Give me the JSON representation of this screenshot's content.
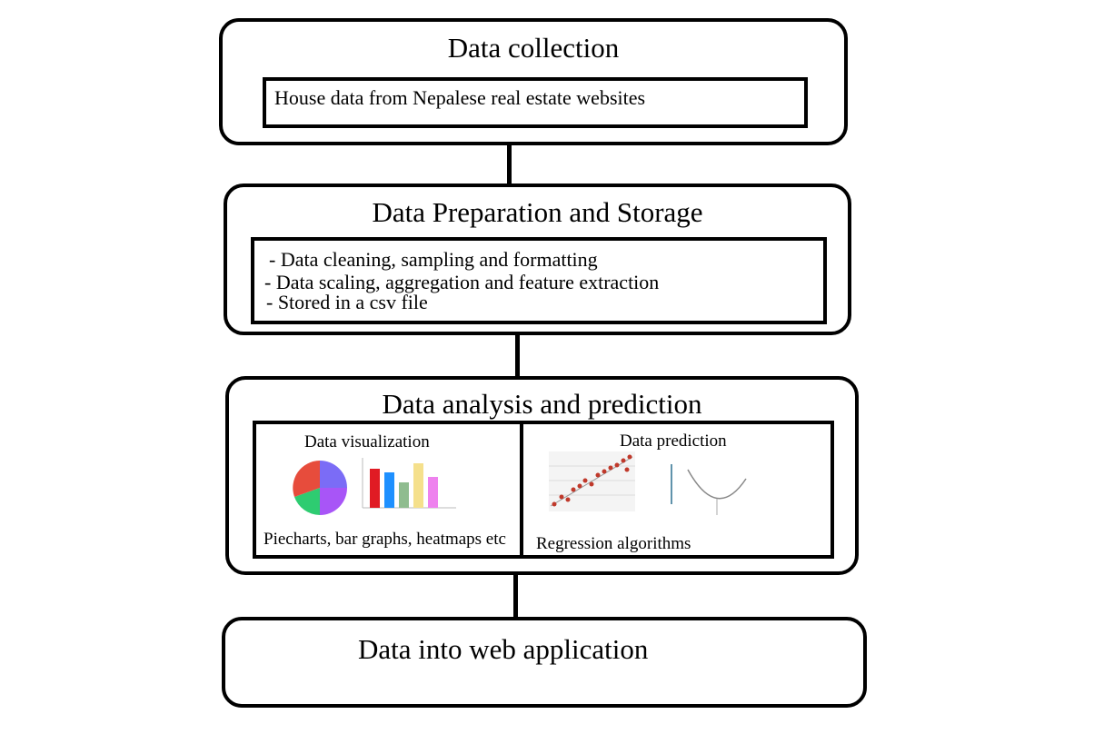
{
  "stages": [
    {
      "title": "Data collection",
      "lines": [
        "House data from Nepalese real estate websites"
      ]
    },
    {
      "title": "Data Preparation and Storage",
      "lines": [
        "- Data cleaning, sampling and formatting",
        "- Data scaling, aggregation and feature extraction",
        "- Stored in a csv file"
      ]
    },
    {
      "title": "Data analysis and prediction",
      "panels": [
        {
          "title": "Data visualization",
          "caption": "Piecharts, bar graphs, heatmaps etc"
        },
        {
          "title": "Data prediction",
          "caption": "Regression algorithms"
        }
      ]
    },
    {
      "title": "Data into web application"
    }
  ],
  "colors": {
    "pie": [
      "#e74c3c",
      "#7b6cf6",
      "#a855f7",
      "#2ecc71"
    ],
    "bars": [
      "#e01b24",
      "#1e90ff",
      "#8fbc8f",
      "#f5e08c",
      "#ee82ee"
    ],
    "scatter_points": "#c0392b"
  }
}
